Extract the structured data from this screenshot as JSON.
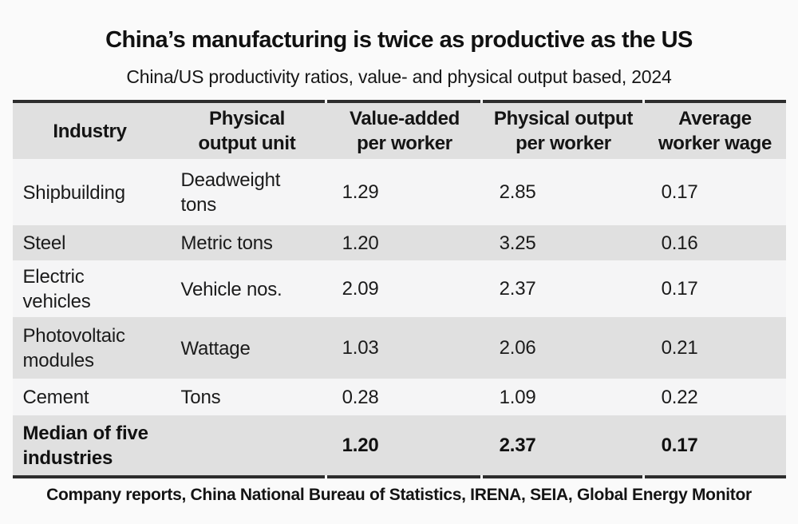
{
  "chart_data": {
    "type": "table",
    "title": "China’s manufacturing is twice as productive as the US",
    "subtitle": "China/US productivity ratios, value- and physical output based, 2024",
    "source": "Company reports, China National Bureau of Statistics, IRENA, SEIA, Global Energy Monitor",
    "columns": [
      "Industry",
      "Physical output unit",
      "Value-added per worker",
      "Physical output per worker",
      "Average worker wage"
    ],
    "rows": [
      [
        "Shipbuilding",
        "Deadweight tons",
        "1.29",
        "2.85",
        "0.17"
      ],
      [
        "Steel",
        "Metric tons",
        "1.20",
        "3.25",
        "0.16"
      ],
      [
        "Electric vehicles",
        "Vehicle nos.",
        "2.09",
        "2.37",
        "0.17"
      ],
      [
        "Photovoltaic modules",
        "Wattage",
        "1.03",
        "2.06",
        "0.21"
      ],
      [
        "Cement",
        "Tons",
        "0.28",
        "1.09",
        "0.22"
      ],
      [
        "Median of five industries",
        "",
        "1.20",
        "2.37",
        "0.17"
      ]
    ],
    "emphasized_row": "Median of five industries",
    "layout": {
      "striped": true,
      "thick_rules": "above header and below last row",
      "numeric_alignment": "right"
    },
    "colors": {
      "row_stripe": "#e0e0e0",
      "row_plain": "#f5f5f6",
      "rule": "#2d2d2d",
      "text": "#1b1b1b",
      "background": "#fafafa"
    }
  }
}
